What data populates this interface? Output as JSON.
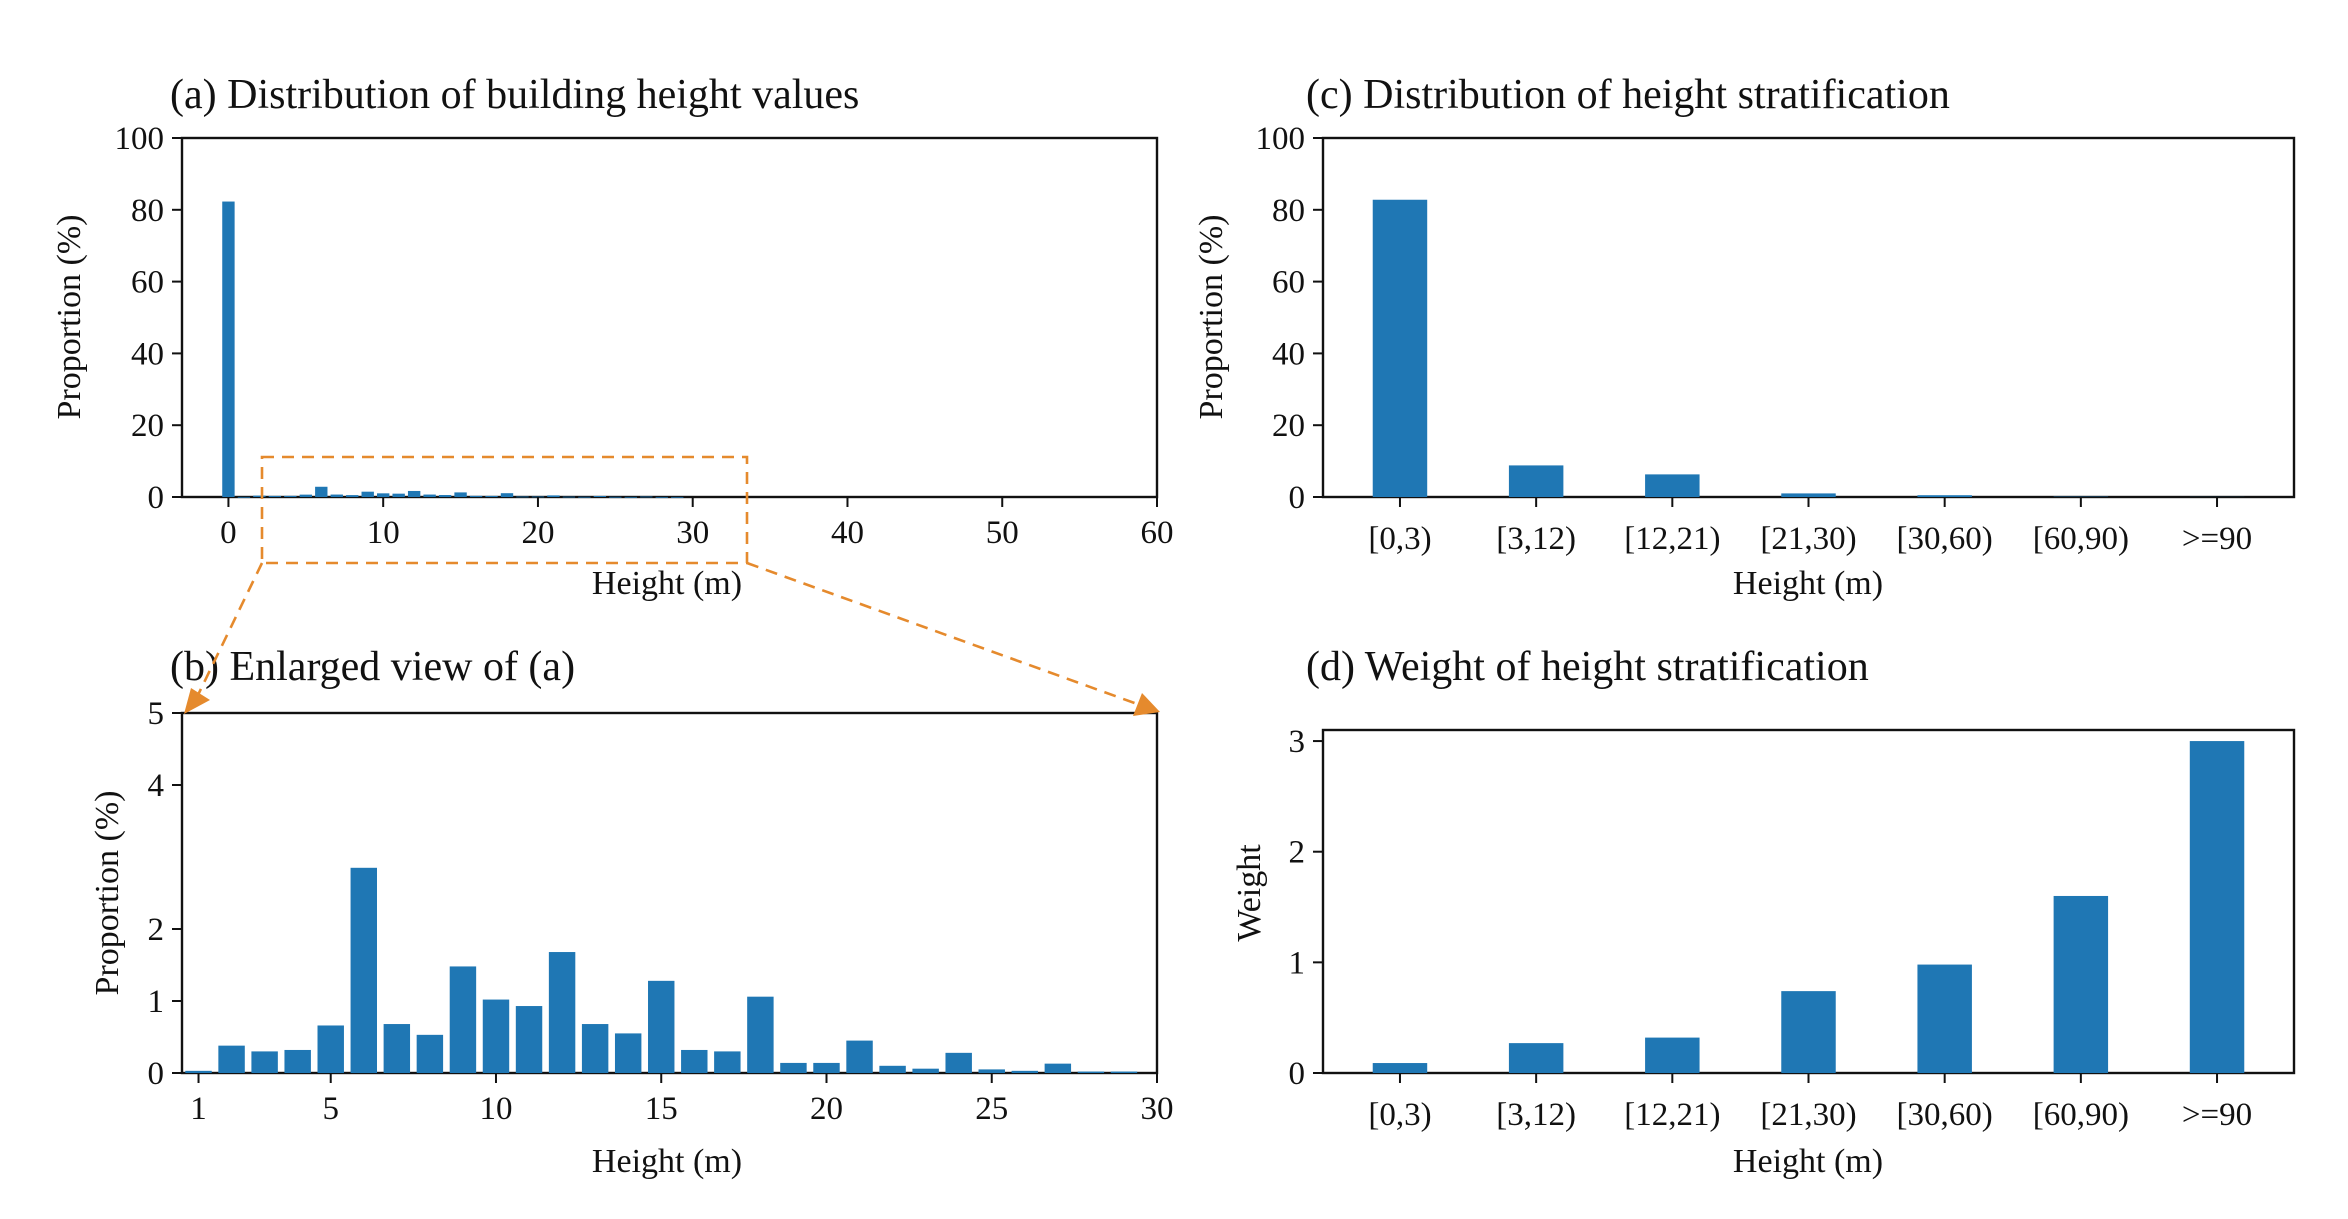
{
  "colors": {
    "bar": "#1f77b4",
    "accent": "#e58a2d",
    "axis": "#111111"
  },
  "chart_data": [
    {
      "id": "a",
      "type": "bar",
      "title": "(a) Distribution of building height values",
      "xlabel": "Height (m)",
      "ylabel": "Proportion (%)",
      "xlim": [
        -3,
        60
      ],
      "ylim": [
        0,
        100
      ],
      "xticks": [
        0,
        10,
        20,
        30,
        40,
        50,
        60
      ],
      "yticks": [
        0,
        20,
        40,
        60,
        80,
        100
      ],
      "x": [
        0,
        1,
        2,
        3,
        4,
        5,
        6,
        7,
        8,
        9,
        10,
        11,
        12,
        13,
        14,
        15,
        16,
        17,
        18,
        19,
        20,
        21,
        22,
        23,
        24,
        25,
        26,
        27,
        28,
        29
      ],
      "values": [
        82.3,
        0.03,
        0.38,
        0.3,
        0.32,
        0.66,
        2.85,
        0.68,
        0.53,
        1.48,
        1.02,
        0.93,
        1.68,
        0.68,
        0.55,
        1.28,
        0.32,
        0.3,
        1.06,
        0.14,
        0.14,
        0.45,
        0.1,
        0.06,
        0.28,
        0.05,
        0.03,
        0.13,
        0.02,
        0.02
      ]
    },
    {
      "id": "b",
      "type": "bar",
      "title": "(b) Enlarged view of (a)",
      "xlabel": "Height (m)",
      "ylabel": "Proportion (%)",
      "xlim": [
        0.5,
        30
      ],
      "ylim": [
        0,
        5
      ],
      "xticks": [
        1,
        5,
        10,
        15,
        20,
        25,
        30
      ],
      "yticks": [
        0,
        1,
        2,
        4,
        5
      ],
      "x": [
        1,
        2,
        3,
        4,
        5,
        6,
        7,
        8,
        9,
        10,
        11,
        12,
        13,
        14,
        15,
        16,
        17,
        18,
        19,
        20,
        21,
        22,
        23,
        24,
        25,
        26,
        27,
        28,
        29
      ],
      "values": [
        0.03,
        0.38,
        0.3,
        0.32,
        0.66,
        2.85,
        0.68,
        0.53,
        1.48,
        1.02,
        0.93,
        1.68,
        0.68,
        0.55,
        1.28,
        0.32,
        0.3,
        1.06,
        0.14,
        0.14,
        0.45,
        0.1,
        0.06,
        0.28,
        0.05,
        0.03,
        0.13,
        0.02,
        0.02
      ]
    },
    {
      "id": "c",
      "type": "bar",
      "title": "(c) Distribution of height stratification",
      "xlabel": "Height (m)",
      "ylabel": "Proportion (%)",
      "ylim": [
        0,
        100
      ],
      "yticks": [
        0,
        20,
        40,
        60,
        80,
        100
      ],
      "categories": [
        "[0,3)",
        "[3,12)",
        "[12,21)",
        "[21,30)",
        "[30,60)",
        "[60,90)",
        ">=90"
      ],
      "values": [
        82.8,
        8.8,
        6.3,
        1.0,
        0.5,
        0.1,
        0.03
      ]
    },
    {
      "id": "d",
      "type": "bar",
      "title": "(d) Weight of height stratification",
      "xlabel": "Height (m)",
      "ylabel": "Weight",
      "ylim": [
        0,
        3.1
      ],
      "yticks": [
        0,
        1,
        2,
        3
      ],
      "categories": [
        "[0,3)",
        "[3,12)",
        "[12,21)",
        "[21,30)",
        "[30,60)",
        "[60,90)",
        ">=90"
      ],
      "values": [
        0.09,
        0.27,
        0.32,
        0.74,
        0.98,
        1.6,
        3.0
      ]
    }
  ]
}
